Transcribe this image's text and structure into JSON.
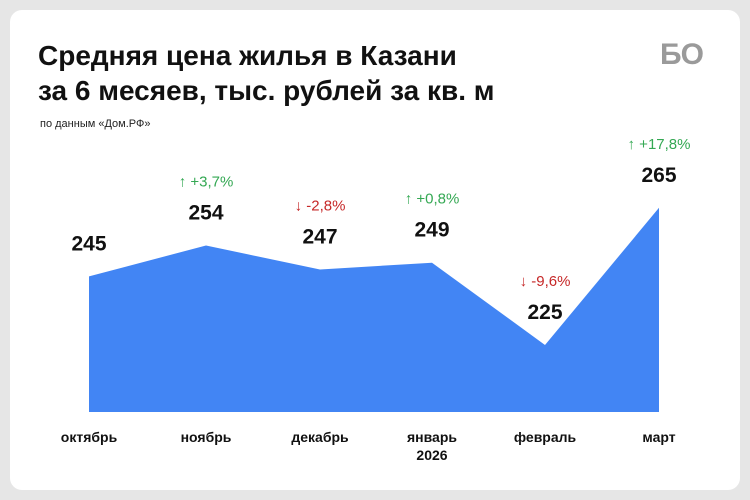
{
  "header": {
    "title_line1": "Средняя цена жилья в Казани",
    "title_line2": "за 6 месяев, тыс. рублей за кв. м",
    "source": "по данным «Дом.РФ»",
    "logo": "БО"
  },
  "chart_data": {
    "type": "area",
    "categories": [
      "октябрь",
      "ноябрь",
      "декабрь",
      "январь",
      "февраль",
      "март"
    ],
    "category_sublabels": [
      "",
      "",
      "",
      "2026",
      "",
      ""
    ],
    "values": [
      245,
      254,
      247,
      249,
      225,
      265
    ],
    "change_labels": [
      "",
      "↑ +3,7%",
      "↓ -2,8%",
      "↑ +0,8%",
      "↓ -9,6%",
      "↑ +17,8%"
    ],
    "change_direction": [
      "",
      "up",
      "down",
      "up",
      "down",
      "up"
    ],
    "colors": {
      "area": "#4285f4",
      "up": "#34a853",
      "down": "#c62828"
    }
  }
}
